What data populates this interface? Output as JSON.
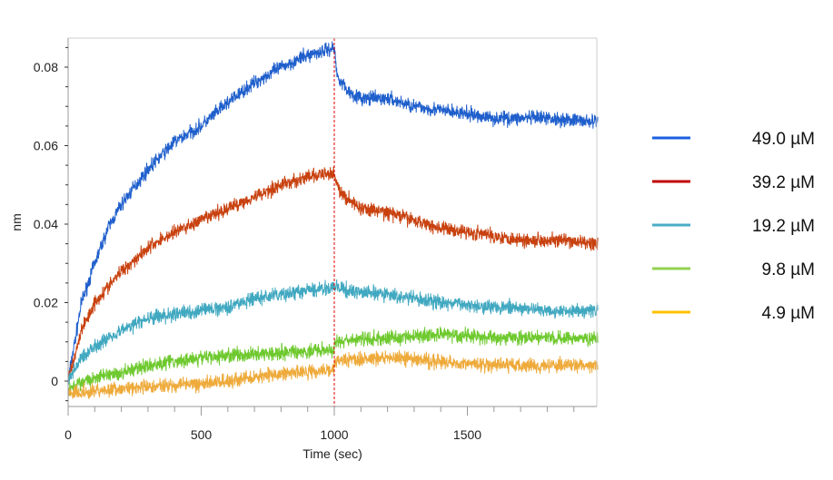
{
  "chart_data": {
    "type": "line",
    "title": "",
    "xlabel": "Time (sec)",
    "ylabel": "nm",
    "xlim": [
      0,
      1990
    ],
    "ylim": [
      -0.0065,
      0.0874
    ],
    "xticks": [
      0,
      500,
      1000,
      1500
    ],
    "xtick_labels": [
      "0",
      "500",
      "1000",
      "1500"
    ],
    "yticks": [
      0,
      0.02,
      0.04,
      0.06,
      0.08
    ],
    "ytick_labels": [
      "0",
      "0.02",
      "0.04",
      "0.06",
      "0.08"
    ],
    "vline": {
      "x": 1000,
      "color": "#e00000",
      "style": "dashed"
    },
    "legend_position": "right",
    "series": [
      {
        "name": "49.0 µM",
        "color": "#1f5fcc",
        "legend_color": "#1a5fe0",
        "x": [
          0,
          50,
          100,
          150,
          200,
          300,
          400,
          500,
          600,
          700,
          800,
          900,
          1000,
          1010,
          1050,
          1100,
          1200,
          1300,
          1400,
          1500,
          1600,
          1700,
          1800,
          1990
        ],
        "y": [
          0,
          0.02,
          0.03,
          0.039,
          0.045,
          0.054,
          0.061,
          0.065,
          0.071,
          0.076,
          0.08,
          0.083,
          0.085,
          0.078,
          0.074,
          0.072,
          0.072,
          0.07,
          0.069,
          0.068,
          0.067,
          0.067,
          0.067,
          0.066
        ]
      },
      {
        "name": "39.2 µM",
        "color": "#c8410f",
        "legend_color": "#c00000",
        "x": [
          0,
          50,
          100,
          200,
          300,
          400,
          500,
          600,
          700,
          800,
          900,
          1000,
          1020,
          1100,
          1200,
          1300,
          1400,
          1500,
          1600,
          1700,
          1800,
          1990
        ],
        "y": [
          0,
          0.013,
          0.02,
          0.028,
          0.034,
          0.038,
          0.041,
          0.044,
          0.047,
          0.05,
          0.052,
          0.053,
          0.048,
          0.044,
          0.043,
          0.041,
          0.039,
          0.038,
          0.037,
          0.036,
          0.036,
          0.035
        ]
      },
      {
        "name": "19.2 µM",
        "color": "#40a8c0",
        "legend_color": "#4bacc6",
        "x": [
          0,
          50,
          100,
          200,
          300,
          400,
          500,
          600,
          700,
          800,
          900,
          1000,
          1050,
          1200,
          1400,
          1600,
          1800,
          1990
        ],
        "y": [
          0,
          0.006,
          0.009,
          0.013,
          0.016,
          0.017,
          0.018,
          0.019,
          0.021,
          0.022,
          0.023,
          0.024,
          0.023,
          0.022,
          0.02,
          0.019,
          0.018,
          0.018
        ]
      },
      {
        "name": "9.8 µM",
        "color": "#6ec92e",
        "legend_color": "#92d050",
        "x": [
          0,
          100,
          200,
          300,
          400,
          500,
          700,
          1000,
          1001,
          1200,
          1400,
          1600,
          1990
        ],
        "y": [
          -0.002,
          0.001,
          0.002,
          0.004,
          0.005,
          0.006,
          0.007,
          0.008,
          0.01,
          0.011,
          0.012,
          0.011,
          0.011
        ]
      },
      {
        "name": "4.9 µM",
        "color": "#eeaa3a",
        "legend_color": "#ffc000",
        "x": [
          0,
          200,
          400,
          600,
          800,
          1000,
          1001,
          1200,
          1400,
          1600,
          1990
        ],
        "y": [
          -0.003,
          -0.002,
          -0.001,
          0.0,
          0.002,
          0.003,
          0.005,
          0.006,
          0.005,
          0.004,
          0.004
        ]
      }
    ]
  }
}
